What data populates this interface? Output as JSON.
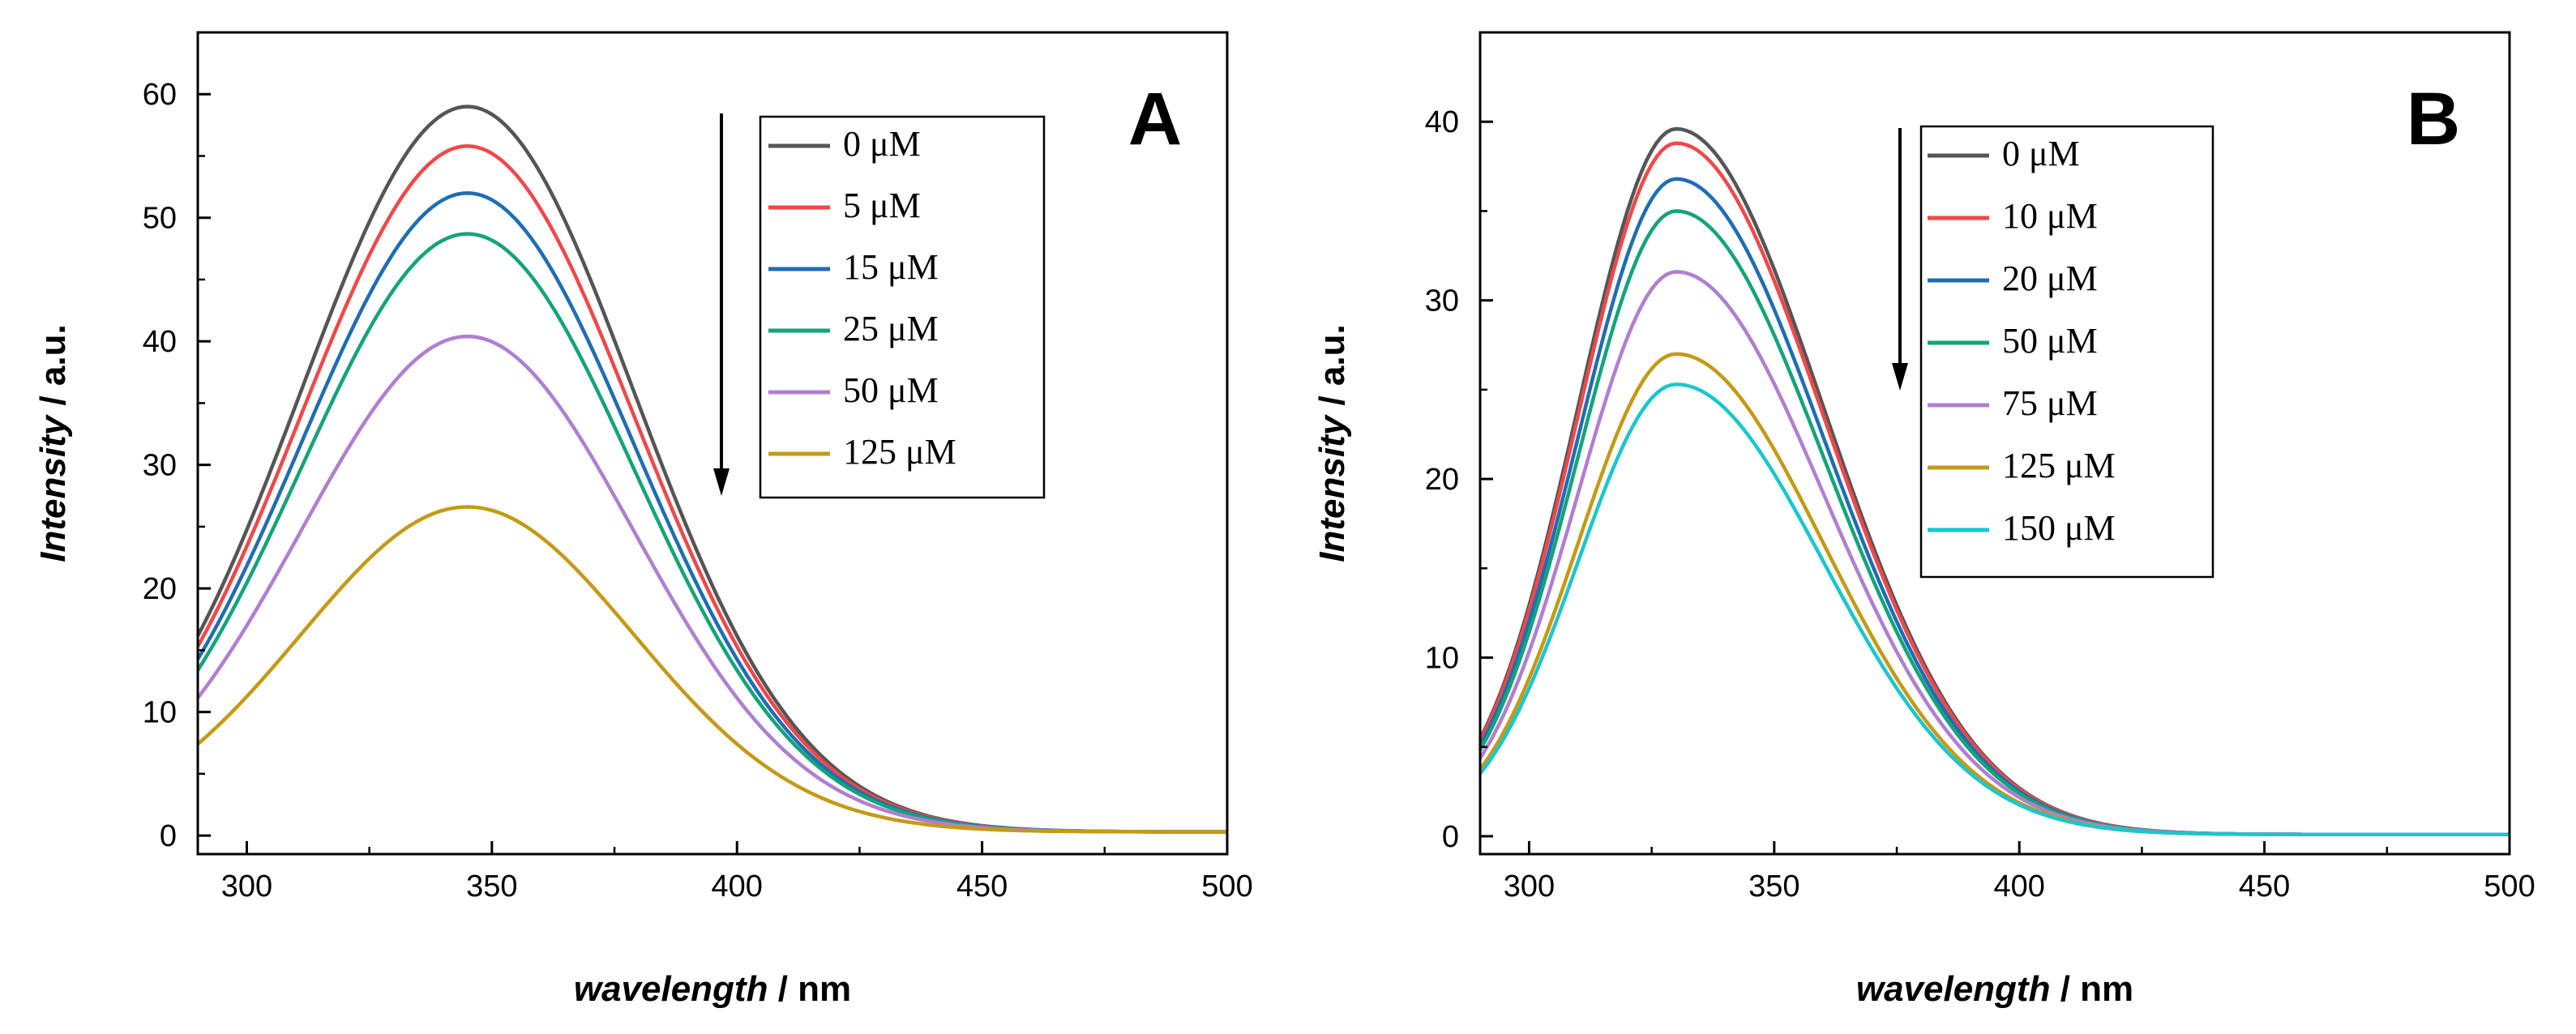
{
  "chart_data": [
    {
      "type": "line",
      "panel": "A",
      "xlabel_italic": "wavelength",
      "xlabel_unit": " / nm",
      "ylabel_italic": "Intensity",
      "ylabel_unit": " / a.u.",
      "xlim": [
        290,
        500
      ],
      "ylim": [
        -1.5,
        65
      ],
      "xticks": [
        300,
        350,
        400,
        450,
        500
      ],
      "yticks": [
        0,
        10,
        20,
        30,
        40,
        50,
        60
      ],
      "peak_x": 345,
      "sigma_left": 34,
      "sigma_right": 34,
      "annotation": "arrow pointing down (decreasing intensity with concentration)",
      "legend_placement": "top-right",
      "series": [
        {
          "name": "0 μM",
          "peak": 59,
          "tail": 0.3,
          "color": "#555555"
        },
        {
          "name": "5 μM",
          "peak": 55.8,
          "tail": 0.3,
          "color": "#f0484a"
        },
        {
          "name": "15 μM",
          "peak": 52,
          "tail": 0.3,
          "color": "#1f6db5"
        },
        {
          "name": "25 μM",
          "peak": 48.7,
          "tail": 0.3,
          "color": "#14a37a"
        },
        {
          "name": "50 μM",
          "peak": 40.4,
          "tail": 0.3,
          "color": "#b07fd0"
        },
        {
          "name": "125 μM",
          "peak": 26.6,
          "tail": 0.3,
          "color": "#c49a16"
        }
      ]
    },
    {
      "type": "line",
      "panel": "B",
      "xlabel_italic": "wavelength",
      "xlabel_unit": " / nm",
      "ylabel_italic": "Intensity",
      "ylabel_unit": " / a.u.",
      "xlim": [
        290,
        500
      ],
      "ylim": [
        -1,
        45
      ],
      "xticks": [
        300,
        350,
        400,
        450,
        500
      ],
      "yticks": [
        0,
        10,
        20,
        30,
        40
      ],
      "peak_x": 330,
      "sigma_left": 20,
      "sigma_right": 30,
      "annotation": "arrow pointing down (decreasing intensity with concentration)",
      "legend_placement": "top-right",
      "series": [
        {
          "name": "0 μM",
          "peak": 39.6,
          "tail": 0.1,
          "color": "#555555"
        },
        {
          "name": "10 μM",
          "peak": 38.8,
          "tail": 0.1,
          "color": "#f0484a"
        },
        {
          "name": "20 μM",
          "peak": 36.8,
          "tail": 0.1,
          "color": "#1f6db5"
        },
        {
          "name": "50 μM",
          "peak": 35,
          "tail": 0.1,
          "color": "#14a37a"
        },
        {
          "name": "75 μM",
          "peak": 31.6,
          "tail": 0.1,
          "color": "#b07fd0"
        },
        {
          "name": "125 μM",
          "peak": 27,
          "tail": 0.1,
          "color": "#c49a16"
        },
        {
          "name": "150 μM",
          "peak": 25.3,
          "tail": 0.1,
          "color": "#1cc6cc"
        }
      ]
    }
  ]
}
